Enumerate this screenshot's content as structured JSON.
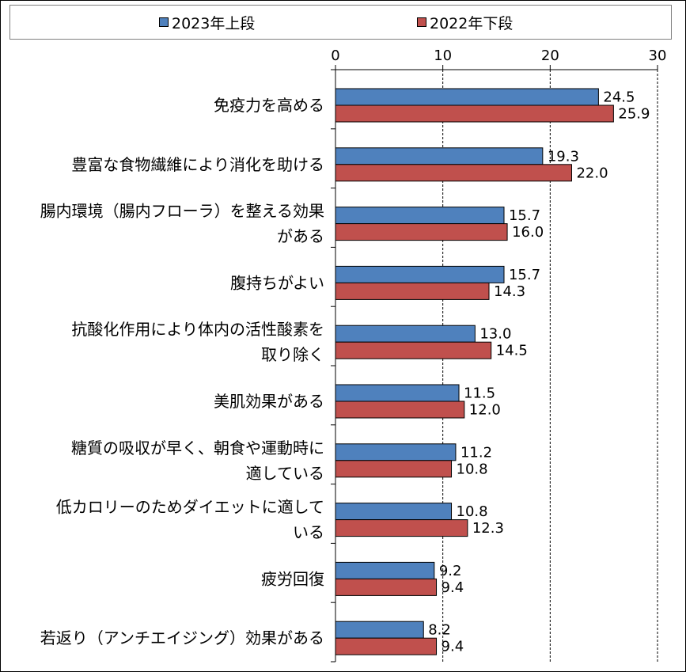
{
  "chart_data": {
    "type": "bar",
    "orientation": "horizontal",
    "categories": [
      "免疫力を高める",
      "豊富な食物繊維により消化を助ける",
      "腸内環境（腸内フローラ）を整える効果がある",
      "腹持ちがよい",
      "抗酸化作用により体内の活性酸素を取り除く",
      "美肌効果がある",
      "糖質の吸収が早く、朝食や運動時に適している",
      "低カロリーのためダイエットに適している",
      "疲労回復",
      "若返り（アンチエイジング）効果がある"
    ],
    "category_lines": [
      [
        "免疫力を高める"
      ],
      [
        "豊富な食物繊維により消化を助ける"
      ],
      [
        "腸内環境（腸内フローラ）を整える効果",
        "がある"
      ],
      [
        "腹持ちがよい"
      ],
      [
        "抗酸化作用により体内の活性酸素を",
        "取り除く"
      ],
      [
        "美肌効果がある"
      ],
      [
        "糖質の吸収が早く、朝食や運動時に",
        "適している"
      ],
      [
        "低カロリーのためダイエットに適して",
        "いる"
      ],
      [
        "疲労回復"
      ],
      [
        "若返り（アンチエイジング）効果がある"
      ]
    ],
    "series": [
      {
        "name": "2023年上段",
        "color": "#4f81bd",
        "values": [
          24.5,
          19.3,
          15.7,
          15.7,
          13.0,
          11.5,
          11.2,
          10.8,
          9.2,
          8.2
        ],
        "labels": [
          "24.5",
          "19.3",
          "15.7",
          "15.7",
          "13.0",
          "11.5",
          "11.2",
          "10.8",
          "9.2",
          "8.2"
        ]
      },
      {
        "name": "2022年下段",
        "color": "#c0504d",
        "values": [
          25.9,
          22.0,
          16.0,
          14.3,
          14.5,
          12.0,
          10.8,
          12.3,
          9.4,
          9.4
        ],
        "labels": [
          "25.9",
          "22.0",
          "16.0",
          "14.3",
          "14.5",
          "12.0",
          "10.8",
          "12.3",
          "9.4",
          "9.4"
        ]
      }
    ],
    "xlim": [
      0,
      30
    ],
    "xticks": [
      "0",
      "10",
      "20",
      "30"
    ],
    "axis_position": "top",
    "grid": "vertical dashed",
    "legend_position": "top"
  },
  "legend": {
    "items": [
      {
        "label": "2023年上段",
        "color": "#4f81bd"
      },
      {
        "label": "2022年下段",
        "color": "#c0504d"
      }
    ]
  }
}
